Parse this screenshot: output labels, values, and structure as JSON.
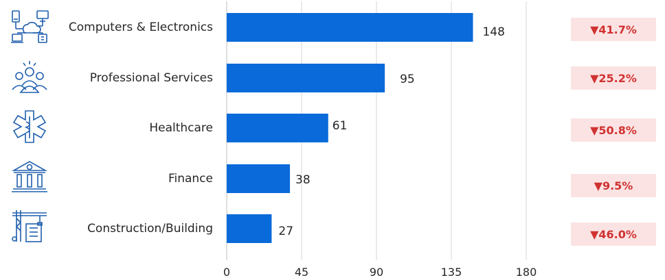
{
  "chart_data": {
    "type": "bar",
    "orientation": "horizontal",
    "categories": [
      "Computers & Electronics",
      "Professional Services",
      "Healthcare",
      "Finance",
      "Construction/Building"
    ],
    "values": [
      148,
      95,
      61,
      38,
      27
    ],
    "changes": [
      "▼41.7%",
      "▼25.2%",
      "▼50.8%",
      "▼9.5%",
      "▼46.0%"
    ],
    "xlim": [
      0,
      180
    ],
    "xticks": [
      "0",
      "45",
      "90",
      "135",
      "180"
    ],
    "grid": true,
    "bar_color": "#0a6ad9",
    "badge_color": "#d03232",
    "badge_bg": "#fbe3e3"
  },
  "icons": [
    "computer-network-icon",
    "professional-people-icon",
    "medical-star-icon",
    "bank-icon",
    "construction-crane-icon"
  ]
}
